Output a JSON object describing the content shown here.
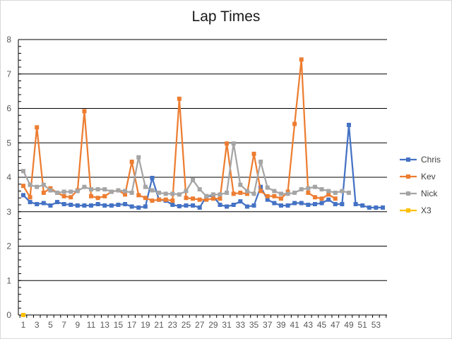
{
  "chart_data": {
    "type": "line",
    "title": "Lap Times",
    "xlabel": "",
    "ylabel": "",
    "ylim": [
      0,
      8
    ],
    "xlim": [
      1,
      54
    ],
    "y_ticks": [
      0,
      1,
      2,
      3,
      4,
      5,
      6,
      7,
      8
    ],
    "x_tick_labels": [
      1,
      3,
      5,
      7,
      9,
      11,
      13,
      15,
      17,
      19,
      21,
      23,
      25,
      27,
      29,
      31,
      33,
      35,
      37,
      39,
      41,
      43,
      45,
      47,
      49,
      51,
      53
    ],
    "grid": "horizontal",
    "legend_position": "right",
    "x": [
      1,
      2,
      3,
      4,
      5,
      6,
      7,
      8,
      9,
      10,
      11,
      12,
      13,
      14,
      15,
      16,
      17,
      18,
      19,
      20,
      21,
      22,
      23,
      24,
      25,
      26,
      27,
      28,
      29,
      30,
      31,
      32,
      33,
      34,
      35,
      36,
      37,
      38,
      39,
      40,
      41,
      42,
      43,
      44,
      45,
      46,
      47,
      48,
      49,
      50,
      51,
      52,
      53,
      54
    ],
    "series": [
      {
        "name": "Chris",
        "color": "#4472c4",
        "values": [
          3.48,
          3.28,
          3.22,
          3.25,
          3.18,
          3.28,
          3.22,
          3.2,
          3.18,
          3.18,
          3.18,
          3.22,
          3.18,
          3.18,
          3.2,
          3.22,
          3.15,
          3.12,
          3.15,
          3.98,
          3.35,
          3.32,
          3.2,
          3.16,
          3.18,
          3.18,
          3.12,
          3.45,
          3.45,
          3.2,
          3.15,
          3.2,
          3.3,
          3.15,
          3.18,
          3.72,
          3.35,
          3.25,
          3.18,
          3.18,
          3.25,
          3.25,
          3.2,
          3.22,
          3.25,
          3.35,
          3.22,
          3.22,
          5.52,
          3.22,
          3.18,
          3.12,
          3.12,
          3.12
        ]
      },
      {
        "name": "Kev",
        "color": "#ed7d31",
        "values": [
          3.75,
          3.42,
          5.45,
          3.55,
          3.68,
          3.55,
          3.45,
          3.42,
          3.62,
          5.92,
          3.45,
          3.4,
          3.45,
          3.58,
          3.62,
          3.5,
          4.45,
          3.48,
          3.4,
          3.32,
          3.35,
          3.35,
          3.32,
          6.28,
          3.4,
          3.38,
          3.35,
          3.35,
          3.38,
          3.38,
          4.98,
          3.52,
          3.55,
          3.52,
          4.68,
          3.6,
          3.45,
          3.45,
          3.38,
          3.58,
          5.55,
          7.42,
          3.55,
          3.42,
          3.38,
          3.5,
          3.38,
          null,
          null,
          null,
          null,
          null,
          null,
          null
        ]
      },
      {
        "name": "Nick",
        "color": "#a5a5a5",
        "values": [
          4.18,
          3.78,
          3.72,
          3.78,
          3.62,
          3.55,
          3.58,
          3.58,
          3.6,
          3.72,
          3.65,
          3.65,
          3.65,
          3.58,
          3.62,
          3.6,
          3.55,
          4.58,
          3.72,
          3.62,
          3.55,
          3.52,
          3.52,
          3.5,
          3.6,
          3.92,
          3.65,
          3.45,
          3.5,
          3.5,
          3.55,
          4.98,
          3.78,
          3.6,
          3.52,
          4.45,
          3.7,
          3.6,
          3.52,
          3.52,
          3.55,
          3.65,
          3.68,
          3.72,
          3.65,
          3.6,
          3.55,
          3.6,
          3.55,
          null,
          null,
          null,
          null,
          null
        ]
      },
      {
        "name": "X3",
        "color": "#ffc000",
        "values": [
          0,
          null,
          null,
          null,
          null,
          null,
          null,
          null,
          null,
          null,
          null,
          null,
          null,
          null,
          null,
          null,
          null,
          null,
          null,
          null,
          null,
          null,
          null,
          null,
          null,
          null,
          null,
          null,
          null,
          null,
          null,
          null,
          null,
          null,
          null,
          null,
          null,
          null,
          null,
          null,
          null,
          null,
          null,
          null,
          null,
          null,
          null,
          null,
          null,
          null,
          null,
          null,
          null,
          null
        ]
      }
    ]
  }
}
